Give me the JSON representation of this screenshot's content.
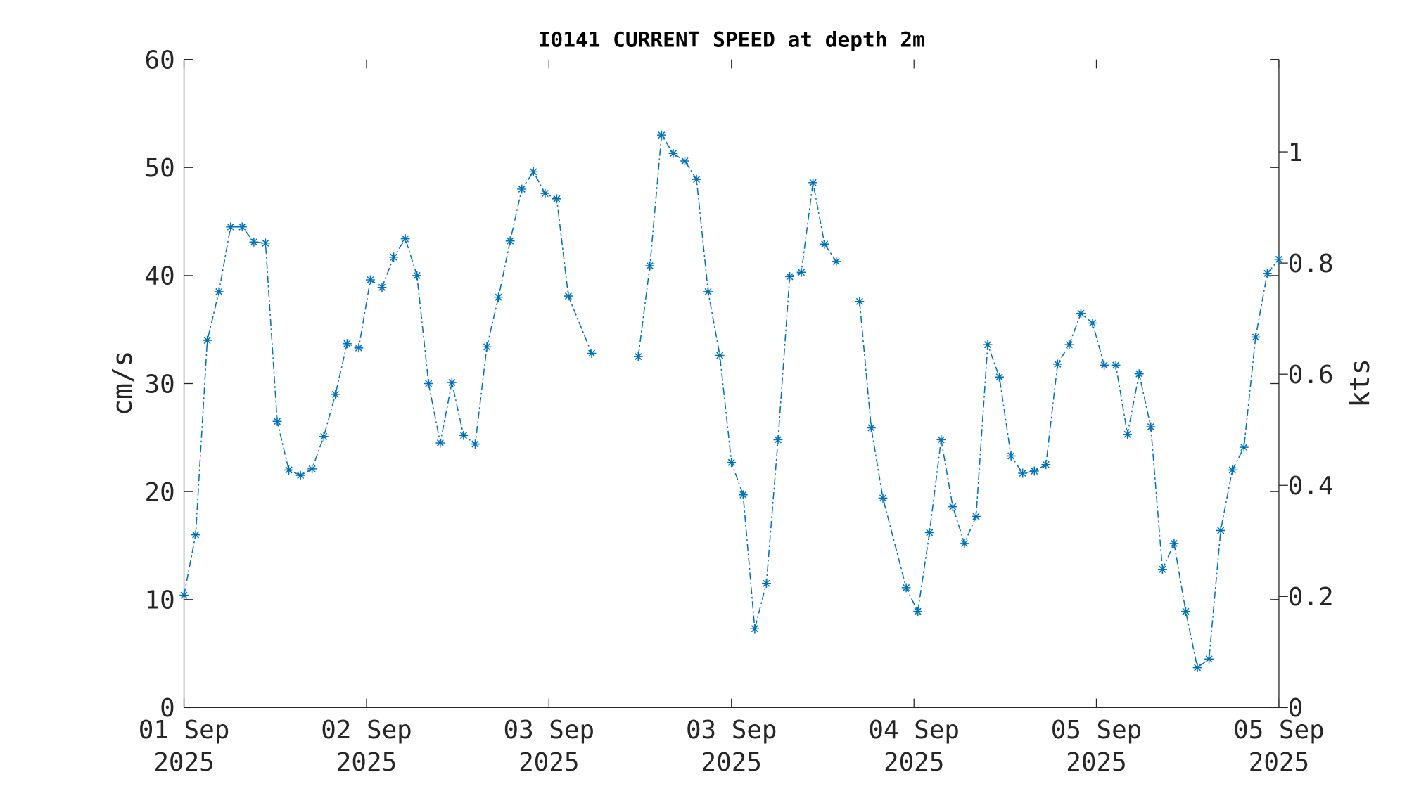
{
  "chart_data": {
    "type": "line",
    "title": "I0141 CURRENT SPEED at depth 2m",
    "y_label": "cm/s",
    "y2_label": "kts",
    "color": "#0072bd",
    "marker": "asterisk",
    "line_style": "dash-dot",
    "x": [
      0,
      1,
      2,
      3,
      4,
      5,
      6,
      7,
      8,
      9,
      10,
      11,
      12,
      13,
      14,
      15,
      16,
      17,
      18,
      19,
      20,
      21,
      22,
      23,
      24,
      25,
      26,
      27,
      28,
      29,
      30,
      31,
      32,
      33,
      35,
      36,
      39,
      40,
      41,
      42,
      43,
      44,
      45,
      46,
      47,
      48,
      49,
      50,
      51,
      52,
      53,
      54,
      55,
      56,
      57,
      58,
      59,
      60,
      62,
      63,
      64,
      65,
      66,
      67,
      68,
      69,
      70,
      71,
      72,
      73,
      74,
      75,
      76,
      77,
      78,
      79,
      80,
      81,
      82,
      83,
      84,
      85,
      86,
      87,
      88,
      89,
      90,
      91,
      92,
      93,
      94
    ],
    "values": [
      10.4,
      16.0,
      34.0,
      38.5,
      44.5,
      44.5,
      43.1,
      43.0,
      26.5,
      22.0,
      21.5,
      22.1,
      25.1,
      29.0,
      33.7,
      33.3,
      39.6,
      38.9,
      41.7,
      43.4,
      40.0,
      30.0,
      24.5,
      30.1,
      25.2,
      24.4,
      33.4,
      38.0,
      43.2,
      48.0,
      49.6,
      47.6,
      47.1,
      38.1,
      32.8,
      null,
      32.5,
      40.9,
      53.0,
      51.3,
      50.6,
      48.9,
      38.5,
      32.6,
      22.7,
      19.7,
      7.3,
      11.5,
      24.8,
      39.9,
      40.3,
      48.6,
      42.9,
      41.3,
      null,
      37.6,
      25.9,
      19.4,
      11.1,
      8.9,
      16.2,
      24.8,
      18.6,
      15.2,
      17.7,
      33.6,
      30.6,
      23.3,
      21.7,
      21.9,
      22.5,
      31.8,
      33.6,
      36.5,
      35.6,
      31.7,
      31.7,
      25.3,
      30.9,
      26.0,
      12.8,
      15.2,
      8.9,
      3.7,
      4.5,
      16.4,
      22.0,
      24.1,
      34.3,
      40.2,
      41.5
    ],
    "xlim": [
      0,
      94
    ],
    "xticks": [
      {
        "value": 0,
        "label": "01 Sep\n2025"
      },
      {
        "value": 15.67,
        "label": "02 Sep\n2025"
      },
      {
        "value": 31.33,
        "label": "03 Sep\n2025"
      },
      {
        "value": 47,
        "label": "03 Sep\n2025"
      },
      {
        "value": 62.67,
        "label": "04 Sep\n2025"
      },
      {
        "value": 78.33,
        "label": "05 Sep\n2025"
      },
      {
        "value": 94,
        "label": "05 Sep\n2025"
      }
    ],
    "ylim": [
      0,
      60
    ],
    "yticks": [
      0,
      10,
      20,
      30,
      40,
      50,
      60
    ],
    "y2lim": [
      0,
      1.1663
    ],
    "y2ticks": [
      0,
      0.2,
      0.4,
      0.6,
      0.8,
      1
    ]
  }
}
